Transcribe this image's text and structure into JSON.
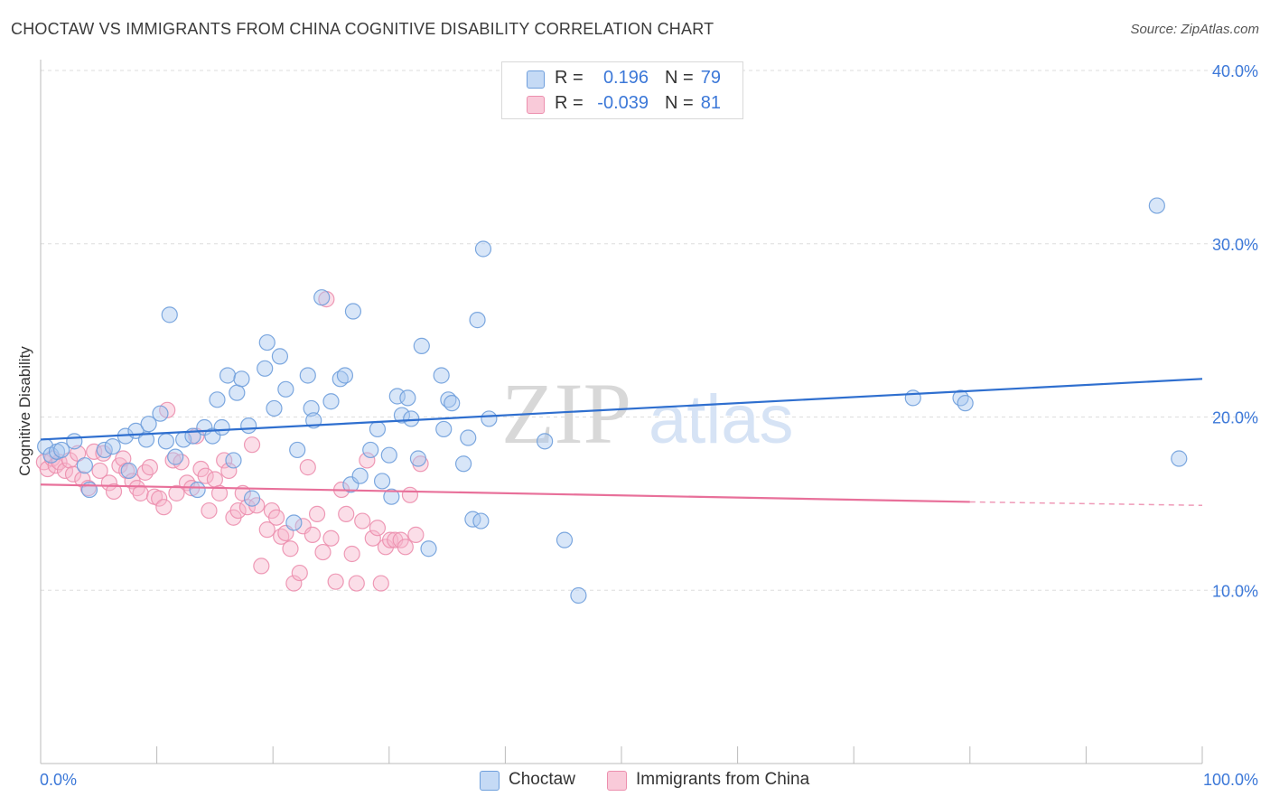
{
  "header": {
    "title": "CHOCTAW VS IMMIGRANTS FROM CHINA COGNITIVE DISABILITY CORRELATION CHART",
    "source": "Source: ZipAtlas.com"
  },
  "watermark": {
    "zip": "ZIP",
    "atlas": "atlas"
  },
  "legend_top": {
    "rows": [
      {
        "r_label": "R =",
        "r_value": "0.196",
        "n_label": "N =",
        "n_value": "79"
      },
      {
        "r_label": "R =",
        "r_value": "-0.039",
        "n_label": "N =",
        "n_value": "81"
      }
    ]
  },
  "legend_bottom": {
    "items": [
      "Choctaw",
      "Immigrants from China"
    ]
  },
  "colors": {
    "blue_fill": "#a8c8f0",
    "blue_stroke": "#6f9fdc",
    "blue_line": "#2f6fcf",
    "pink_fill": "#f7b6cb",
    "pink_stroke": "#ec8fae",
    "pink_line": "#e8709a",
    "tick_text": "#3c78d8",
    "grid": "#dddddd"
  },
  "chart_data": {
    "type": "scatter",
    "title": "CHOCTAW VS IMMIGRANTS FROM CHINA COGNITIVE DISABILITY CORRELATION CHART",
    "xlabel": "",
    "ylabel": "Cognitive Disability",
    "xlim": [
      0,
      100
    ],
    "ylim": [
      0,
      40
    ],
    "x_tick_labels": [
      "0.0%",
      "100.0%"
    ],
    "y_ticks": [
      10,
      20,
      30,
      40
    ],
    "y_tick_labels": [
      "10.0%",
      "20.0%",
      "30.0%",
      "40.0%"
    ],
    "grid": "horizontal dashed",
    "legend_position": "top-center",
    "series": [
      {
        "name": "Choctaw",
        "r": 0.196,
        "n": 79,
        "trend": {
          "x": [
            0,
            100
          ],
          "y": [
            18.7,
            22.2
          ]
        },
        "points": [
          [
            0.4,
            18.3
          ],
          [
            0.9,
            17.8
          ],
          [
            1.4,
            18.0
          ],
          [
            1.8,
            18.1
          ],
          [
            2.9,
            18.6
          ],
          [
            3.8,
            17.2
          ],
          [
            4.2,
            15.8
          ],
          [
            5.5,
            18.1
          ],
          [
            6.2,
            18.3
          ],
          [
            7.3,
            18.9
          ],
          [
            7.6,
            16.9
          ],
          [
            8.2,
            19.2
          ],
          [
            9.1,
            18.7
          ],
          [
            9.3,
            19.6
          ],
          [
            10.3,
            20.2
          ],
          [
            10.8,
            18.6
          ],
          [
            11.1,
            25.9
          ],
          [
            11.6,
            17.7
          ],
          [
            12.3,
            18.7
          ],
          [
            13.1,
            18.9
          ],
          [
            13.5,
            15.8
          ],
          [
            14.1,
            19.4
          ],
          [
            14.8,
            18.9
          ],
          [
            15.2,
            21.0
          ],
          [
            15.6,
            19.4
          ],
          [
            16.1,
            22.4
          ],
          [
            16.6,
            17.5
          ],
          [
            16.9,
            21.4
          ],
          [
            17.3,
            22.2
          ],
          [
            17.9,
            19.5
          ],
          [
            18.2,
            15.3
          ],
          [
            19.3,
            22.8
          ],
          [
            19.5,
            24.3
          ],
          [
            20.1,
            20.5
          ],
          [
            20.6,
            23.5
          ],
          [
            21.1,
            21.6
          ],
          [
            21.8,
            13.9
          ],
          [
            22.1,
            18.1
          ],
          [
            23.0,
            22.4
          ],
          [
            23.3,
            20.5
          ],
          [
            23.5,
            19.8
          ],
          [
            24.2,
            26.9
          ],
          [
            25.0,
            20.9
          ],
          [
            25.8,
            22.2
          ],
          [
            26.2,
            22.4
          ],
          [
            26.7,
            16.1
          ],
          [
            26.9,
            26.1
          ],
          [
            27.5,
            16.6
          ],
          [
            28.4,
            18.1
          ],
          [
            29.0,
            19.3
          ],
          [
            29.4,
            16.3
          ],
          [
            30.0,
            17.8
          ],
          [
            30.2,
            15.4
          ],
          [
            30.7,
            21.2
          ],
          [
            31.1,
            20.1
          ],
          [
            31.6,
            21.1
          ],
          [
            31.9,
            19.9
          ],
          [
            32.5,
            17.6
          ],
          [
            32.8,
            24.1
          ],
          [
            33.4,
            12.4
          ],
          [
            34.5,
            22.4
          ],
          [
            34.7,
            19.3
          ],
          [
            35.1,
            21.0
          ],
          [
            35.4,
            20.8
          ],
          [
            36.4,
            17.3
          ],
          [
            36.8,
            18.8
          ],
          [
            37.2,
            14.1
          ],
          [
            37.6,
            25.6
          ],
          [
            37.9,
            14.0
          ],
          [
            38.1,
            29.7
          ],
          [
            38.6,
            19.9
          ],
          [
            43.4,
            18.6
          ],
          [
            45.1,
            12.9
          ],
          [
            46.3,
            9.7
          ],
          [
            75.1,
            21.1
          ],
          [
            79.2,
            21.1
          ],
          [
            79.6,
            20.8
          ],
          [
            96.1,
            32.2
          ],
          [
            98.0,
            17.6
          ]
        ]
      },
      {
        "name": "Immigrants from China",
        "r": -0.039,
        "n": 81,
        "trend": {
          "x": [
            0,
            80
          ],
          "y": [
            16.1,
            15.1
          ]
        },
        "trend_dashed": {
          "x": [
            80,
            100
          ],
          "y": [
            15.1,
            14.9
          ]
        },
        "points": [
          [
            0.3,
            17.4
          ],
          [
            0.6,
            17.0
          ],
          [
            1.0,
            17.6
          ],
          [
            1.3,
            17.2
          ],
          [
            1.6,
            17.4
          ],
          [
            2.1,
            16.9
          ],
          [
            2.5,
            17.5
          ],
          [
            2.8,
            16.7
          ],
          [
            3.2,
            17.9
          ],
          [
            3.6,
            16.4
          ],
          [
            4.1,
            15.9
          ],
          [
            4.6,
            18.0
          ],
          [
            5.1,
            16.9
          ],
          [
            5.4,
            17.9
          ],
          [
            5.9,
            16.2
          ],
          [
            6.3,
            15.7
          ],
          [
            6.8,
            17.2
          ],
          [
            7.1,
            17.6
          ],
          [
            7.4,
            16.9
          ],
          [
            7.9,
            16.3
          ],
          [
            8.3,
            15.9
          ],
          [
            8.6,
            15.6
          ],
          [
            9.0,
            16.8
          ],
          [
            9.4,
            17.1
          ],
          [
            9.8,
            15.4
          ],
          [
            10.2,
            15.3
          ],
          [
            10.6,
            14.8
          ],
          [
            10.9,
            20.4
          ],
          [
            11.4,
            17.5
          ],
          [
            11.7,
            15.6
          ],
          [
            12.1,
            17.4
          ],
          [
            12.6,
            16.2
          ],
          [
            13.0,
            15.9
          ],
          [
            13.4,
            18.9
          ],
          [
            13.8,
            17.0
          ],
          [
            14.2,
            16.6
          ],
          [
            14.5,
            14.6
          ],
          [
            15.0,
            16.4
          ],
          [
            15.4,
            15.6
          ],
          [
            15.8,
            17.5
          ],
          [
            16.2,
            16.9
          ],
          [
            16.6,
            14.2
          ],
          [
            17.0,
            14.6
          ],
          [
            17.4,
            15.6
          ],
          [
            17.8,
            14.8
          ],
          [
            18.2,
            18.4
          ],
          [
            18.6,
            14.9
          ],
          [
            19.0,
            11.4
          ],
          [
            19.5,
            13.5
          ],
          [
            19.9,
            14.6
          ],
          [
            20.3,
            14.2
          ],
          [
            20.7,
            13.1
          ],
          [
            21.1,
            13.3
          ],
          [
            21.5,
            12.4
          ],
          [
            21.8,
            10.4
          ],
          [
            22.3,
            11.0
          ],
          [
            22.6,
            13.7
          ],
          [
            23.0,
            17.1
          ],
          [
            23.4,
            13.2
          ],
          [
            23.8,
            14.4
          ],
          [
            24.3,
            12.2
          ],
          [
            24.6,
            26.8
          ],
          [
            25.0,
            13.0
          ],
          [
            25.4,
            10.5
          ],
          [
            25.9,
            15.8
          ],
          [
            26.3,
            14.4
          ],
          [
            26.8,
            12.1
          ],
          [
            27.2,
            10.4
          ],
          [
            27.7,
            14.0
          ],
          [
            28.1,
            17.5
          ],
          [
            28.6,
            13.0
          ],
          [
            29.0,
            13.6
          ],
          [
            29.3,
            10.4
          ],
          [
            29.7,
            12.5
          ],
          [
            30.1,
            12.9
          ],
          [
            30.5,
            12.9
          ],
          [
            31.0,
            12.9
          ],
          [
            31.4,
            12.5
          ],
          [
            31.8,
            15.5
          ],
          [
            32.3,
            13.2
          ],
          [
            32.7,
            17.3
          ]
        ]
      }
    ]
  }
}
